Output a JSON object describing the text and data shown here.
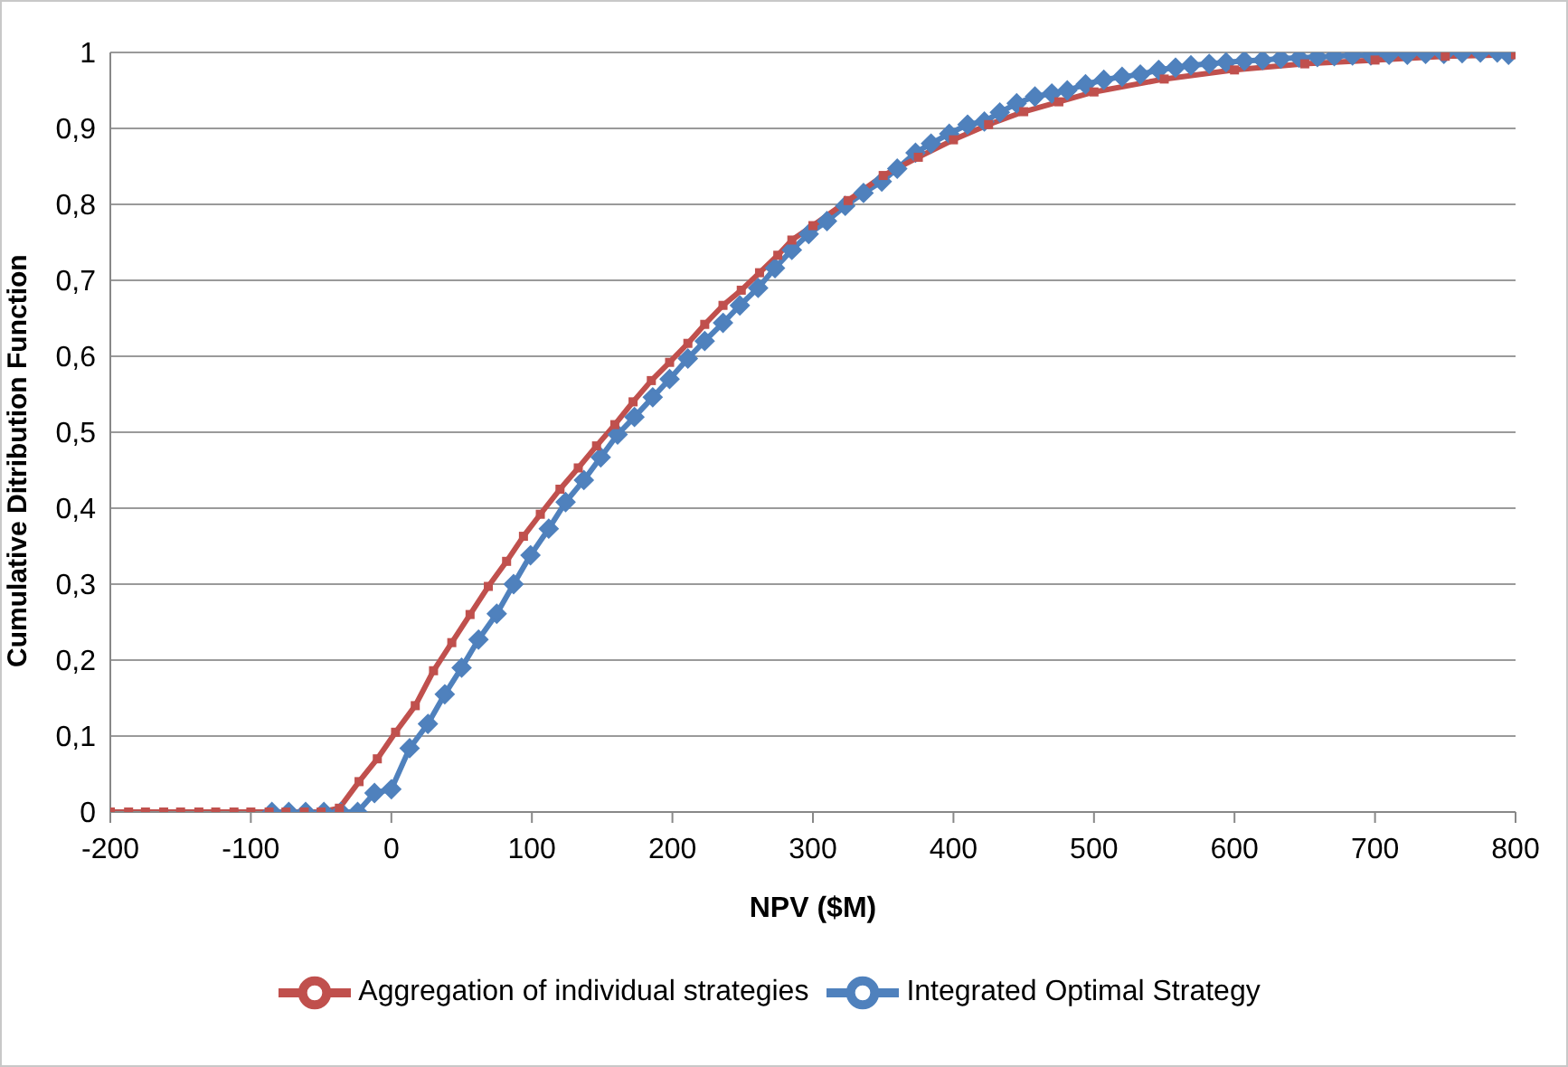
{
  "chart_data": {
    "type": "line",
    "xlabel": "NPV ($M)",
    "ylabel": "Cumulative Ditribution Function",
    "xlim": [
      -200,
      800
    ],
    "xticks": [
      -200,
      -100,
      0,
      100,
      200,
      300,
      400,
      500,
      600,
      700,
      800
    ],
    "ylim": [
      0,
      1
    ],
    "yticks": [
      {
        "value": 0,
        "label": "0"
      },
      {
        "value": 0.1,
        "label": "0,1"
      },
      {
        "value": 0.2,
        "label": "0,2"
      },
      {
        "value": 0.3,
        "label": "0,3"
      },
      {
        "value": 0.4,
        "label": "0,4"
      },
      {
        "value": 0.5,
        "label": "0,5"
      },
      {
        "value": 0.6,
        "label": "0,6"
      },
      {
        "value": 0.7,
        "label": "0,7"
      },
      {
        "value": 0.8,
        "label": "0,8"
      },
      {
        "value": 0.9,
        "label": "0,9"
      },
      {
        "value": 1,
        "label": "1"
      }
    ],
    "grid": "y",
    "legend": "bottom",
    "line_style": "solid",
    "series": [
      {
        "name": "Integrated Optimal Strategy",
        "color": "#4f81bd",
        "marker": "diamond",
        "x": [
          -85,
          -73,
          -61,
          -48,
          -36,
          -24,
          -12,
          0,
          13,
          26,
          38,
          50,
          62,
          75,
          87,
          99,
          112,
          124,
          137,
          149,
          161,
          173,
          186,
          198,
          211,
          223,
          236,
          248,
          261,
          273,
          285,
          297,
          310,
          323,
          336,
          349,
          360,
          373,
          384,
          397,
          410,
          422,
          433,
          445,
          458,
          470,
          481,
          494,
          507,
          520,
          533,
          546,
          558,
          569,
          582,
          594,
          607,
          620,
          633,
          646,
          659,
          671,
          684,
          697,
          710,
          723,
          736,
          749,
          762,
          775,
          787,
          795
        ],
        "values": [
          0,
          0,
          0,
          0,
          0,
          0,
          0.025,
          0.03,
          0.084,
          0.116,
          0.155,
          0.19,
          0.227,
          0.261,
          0.3,
          0.338,
          0.373,
          0.408,
          0.437,
          0.467,
          0.497,
          0.52,
          0.546,
          0.57,
          0.597,
          0.62,
          0.644,
          0.667,
          0.69,
          0.716,
          0.74,
          0.761,
          0.778,
          0.798,
          0.815,
          0.83,
          0.847,
          0.868,
          0.88,
          0.893,
          0.905,
          0.909,
          0.921,
          0.933,
          0.942,
          0.946,
          0.95,
          0.958,
          0.964,
          0.968,
          0.971,
          0.977,
          0.98,
          0.983,
          0.985,
          0.987,
          0.989,
          0.99,
          0.992,
          0.993,
          0.994,
          0.995,
          0.996,
          0.996,
          0.997,
          0.997,
          0.998,
          0.998,
          0.999,
          1,
          1,
          0.997
        ]
      },
      {
        "name": "Aggregation of individual strategies",
        "color": "#c0504d",
        "marker": "square",
        "x": [
          -200,
          -187,
          -175,
          -162,
          -150,
          -137,
          -125,
          -112,
          -100,
          -87,
          -75,
          -62,
          -50,
          -37,
          -23,
          -10,
          3,
          17,
          30,
          43,
          56,
          69,
          82,
          94,
          106,
          120,
          133,
          146,
          159,
          172,
          185,
          198,
          211,
          223,
          236,
          249,
          262,
          275,
          285,
          300,
          325,
          350,
          375,
          400,
          425,
          450,
          475,
          500,
          550,
          600,
          650,
          700,
          750,
          800
        ],
        "values": [
          0,
          0,
          0,
          0,
          0,
          0,
          0,
          0,
          0,
          0,
          0,
          0,
          0,
          0.005,
          0.04,
          0.07,
          0.105,
          0.14,
          0.186,
          0.223,
          0.26,
          0.297,
          0.33,
          0.363,
          0.392,
          0.425,
          0.453,
          0.482,
          0.51,
          0.54,
          0.568,
          0.592,
          0.617,
          0.642,
          0.667,
          0.687,
          0.71,
          0.733,
          0.753,
          0.772,
          0.805,
          0.838,
          0.862,
          0.885,
          0.905,
          0.922,
          0.935,
          0.948,
          0.965,
          0.977,
          0.985,
          0.99,
          0.995,
          0.997
        ]
      }
    ]
  }
}
